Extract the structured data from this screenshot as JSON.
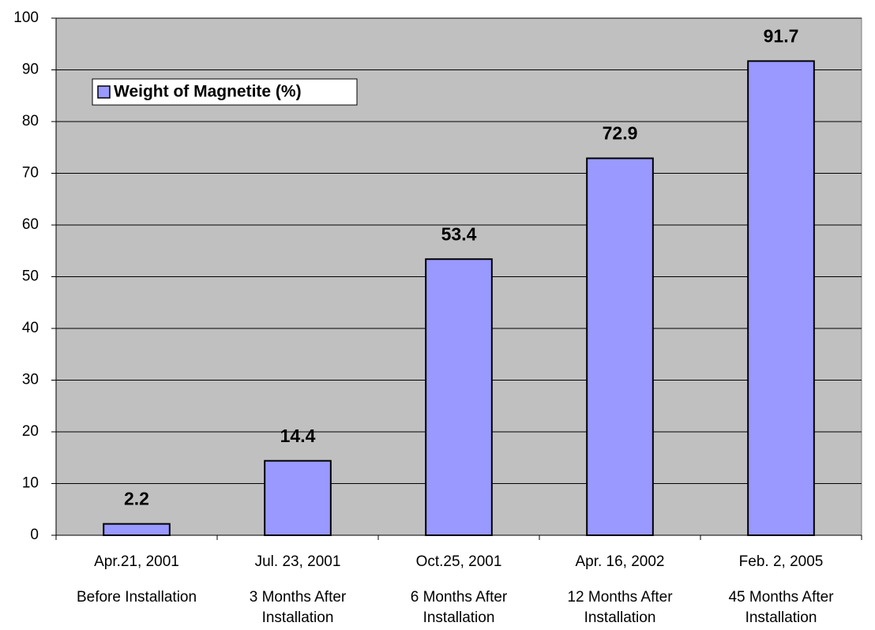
{
  "chart_data": {
    "type": "bar",
    "categories": [
      [
        "Apr.21, 2001",
        "Before Installation"
      ],
      [
        "Jul. 23, 2001",
        "3 Months After",
        "Installation"
      ],
      [
        "Oct.25, 2001",
        "6 Months After",
        "Installation"
      ],
      [
        "Apr. 16, 2002",
        "12 Months After",
        "Installation"
      ],
      [
        "Feb. 2, 2005",
        "45 Months After",
        "Installation"
      ]
    ],
    "series": [
      {
        "name": "Weight of Magnetite (%)",
        "color": "#9999ff",
        "values": [
          2.2,
          14.4,
          53.4,
          72.9,
          91.7
        ]
      }
    ],
    "ylim": [
      0,
      100
    ],
    "yticks": [
      0,
      10,
      20,
      30,
      40,
      50,
      60,
      70,
      80,
      90,
      100
    ],
    "grid": true,
    "legend": "upper left",
    "background": "#c0c0c0"
  }
}
